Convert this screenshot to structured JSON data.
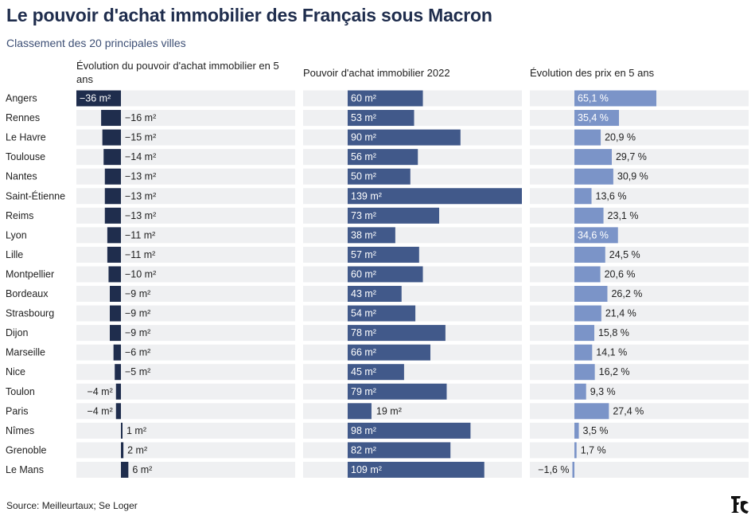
{
  "title": "Le pouvoir d'achat immobilier des Français sous Macron",
  "subtitle": "Classement des 20 principales villes",
  "source": "Source: Meilleurtaux; Se Loger",
  "colors": {
    "evolution_bar": "#1f2d4d",
    "power_bar": "#41598a",
    "price_bar": "#7b94c8",
    "track": "#eff0f2"
  },
  "logo_icon": "le-figaro-logo",
  "chart_data": {
    "type": "bar",
    "categories": [
      "Angers",
      "Rennes",
      "Le Havre",
      "Toulouse",
      "Nantes",
      "Saint-Étienne",
      "Reims",
      "Lyon",
      "Lille",
      "Montpellier",
      "Bordeaux",
      "Strasbourg",
      "Dijon",
      "Marseille",
      "Nice",
      "Toulon",
      "Paris",
      "Nîmes",
      "Grenoble",
      "Le Mans"
    ],
    "series": [
      {
        "name": "Évolution du pouvoir d'achat immobilier en 5 ans",
        "values": [
          -36,
          -16,
          -15,
          -14,
          -13,
          -13,
          -13,
          -11,
          -11,
          -10,
          -9,
          -9,
          -9,
          -6,
          -5,
          -4,
          -4,
          1,
          2,
          6
        ],
        "labels": [
          "−36 m²",
          "−16 m²",
          "−15 m²",
          "−14 m²",
          "−13 m²",
          "−13 m²",
          "−13 m²",
          "−11 m²",
          "−11 m²",
          "−10 m²",
          "−9 m²",
          "−9 m²",
          "−9 m²",
          "−6 m²",
          "−5 m²",
          "−4 m²",
          "−4 m²",
          "1 m²",
          "2 m²",
          "6 m²"
        ]
      },
      {
        "name": "Pouvoir d'achat immobilier 2022",
        "values": [
          60,
          53,
          90,
          56,
          50,
          139,
          73,
          38,
          57,
          60,
          43,
          54,
          78,
          66,
          45,
          79,
          19,
          98,
          82,
          109
        ],
        "labels": [
          "60 m²",
          "53 m²",
          "90 m²",
          "56 m²",
          "50 m²",
          "139 m²",
          "73 m²",
          "38 m²",
          "57 m²",
          "60 m²",
          "43 m²",
          "54 m²",
          "78 m²",
          "66 m²",
          "45 m²",
          "79 m²",
          "19 m²",
          "98 m²",
          "82 m²",
          "109 m²"
        ]
      },
      {
        "name": "Évolution des prix en 5 ans",
        "values": [
          65.1,
          35.4,
          20.9,
          29.7,
          30.9,
          13.6,
          23.1,
          34.6,
          24.5,
          20.6,
          26.2,
          21.4,
          15.8,
          14.1,
          16.2,
          9.3,
          27.4,
          3.5,
          1.7,
          -1.6
        ],
        "labels": [
          "65,1 %",
          "35,4 %",
          "20,9 %",
          "29,7 %",
          "30,9 %",
          "13,6 %",
          "23,1 %",
          "34,6 %",
          "24,5 %",
          "20,6 %",
          "26,2 %",
          "21,4 %",
          "15,8 %",
          "14,1 %",
          "16,2 %",
          "9,3 %",
          "27,4 %",
          "3,5 %",
          "1,7 %",
          "−1,6 %"
        ]
      }
    ]
  }
}
